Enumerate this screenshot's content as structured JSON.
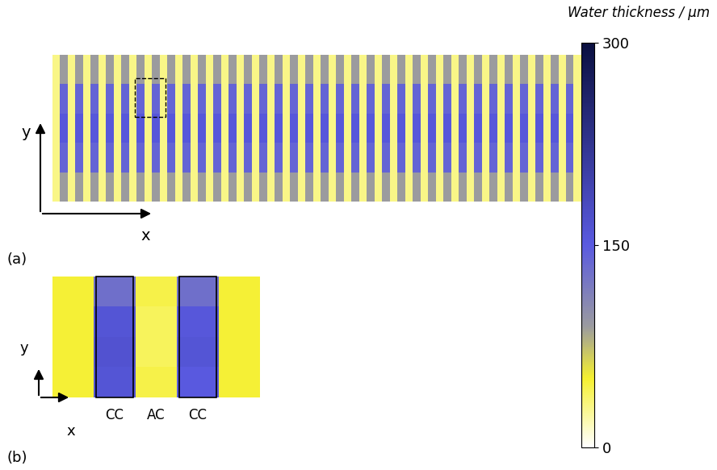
{
  "chart_data": [
    {
      "type": "heatmap",
      "title": "(a)",
      "x_label": "x",
      "y_label": "y",
      "tick_labels": false,
      "cells": [
        [
          30,
          90,
          30,
          90,
          30,
          90,
          30,
          90,
          30,
          90,
          30,
          90,
          30,
          90,
          30,
          90,
          30,
          90,
          30,
          90,
          30,
          90,
          30,
          90,
          30,
          90,
          30,
          90,
          30,
          90,
          30,
          90,
          30,
          90,
          30,
          90,
          30,
          90,
          30,
          90,
          30,
          90,
          30,
          90,
          30,
          90,
          30,
          90,
          30,
          90,
          30,
          90,
          30,
          90,
          30,
          90,
          30,
          90,
          30,
          90,
          30,
          90,
          30,
          90,
          30,
          90,
          30,
          90,
          30
        ],
        [
          30,
          140,
          30,
          140,
          30,
          140,
          30,
          140,
          30,
          140,
          30,
          140,
          30,
          140,
          30,
          140,
          30,
          140,
          30,
          140,
          30,
          140,
          30,
          140,
          30,
          140,
          30,
          140,
          30,
          140,
          30,
          140,
          30,
          140,
          30,
          140,
          30,
          140,
          30,
          140,
          30,
          140,
          30,
          140,
          30,
          140,
          30,
          140,
          30,
          140,
          30,
          140,
          30,
          140,
          30,
          140,
          30,
          140,
          30,
          140,
          30,
          140,
          30,
          140,
          30,
          140,
          30,
          140,
          30
        ],
        [
          30,
          155,
          30,
          155,
          30,
          155,
          30,
          155,
          30,
          155,
          30,
          155,
          30,
          155,
          30,
          155,
          30,
          155,
          30,
          155,
          30,
          155,
          30,
          155,
          30,
          155,
          30,
          155,
          30,
          155,
          30,
          155,
          30,
          155,
          30,
          155,
          30,
          155,
          30,
          155,
          30,
          155,
          30,
          155,
          30,
          155,
          30,
          155,
          30,
          155,
          30,
          155,
          30,
          155,
          30,
          155,
          30,
          155,
          30,
          155,
          30,
          155,
          30,
          155,
          30,
          155,
          30,
          155,
          30
        ],
        [
          30,
          140,
          30,
          140,
          30,
          140,
          30,
          140,
          30,
          140,
          30,
          140,
          30,
          140,
          30,
          140,
          30,
          140,
          30,
          140,
          30,
          140,
          30,
          140,
          30,
          140,
          30,
          140,
          30,
          140,
          30,
          140,
          30,
          140,
          30,
          140,
          30,
          140,
          30,
          140,
          30,
          140,
          30,
          140,
          30,
          140,
          30,
          140,
          30,
          140,
          30,
          140,
          30,
          140,
          30,
          140,
          30,
          140,
          30,
          140,
          30,
          140,
          30,
          140,
          30,
          140,
          30,
          140,
          30
        ],
        [
          30,
          90,
          30,
          90,
          30,
          90,
          30,
          90,
          30,
          90,
          30,
          90,
          30,
          90,
          30,
          90,
          30,
          90,
          30,
          90,
          30,
          90,
          30,
          90,
          30,
          90,
          30,
          90,
          30,
          90,
          30,
          90,
          30,
          90,
          30,
          90,
          30,
          90,
          30,
          90,
          30,
          90,
          30,
          90,
          30,
          90,
          30,
          90,
          30,
          90,
          30,
          90,
          30,
          90,
          30,
          90,
          30,
          90,
          30,
          90,
          30,
          90,
          30,
          90,
          30,
          90,
          30,
          90,
          30
        ]
      ],
      "colorbar": {
        "label": "Water thickness / μm",
        "range": [
          0,
          300
        ],
        "ticks": [
          0,
          150,
          300
        ]
      }
    },
    {
      "type": "heatmap",
      "title": "(b)",
      "x_label": "x",
      "y_label": "y",
      "categories": [
        null,
        "CC",
        "AC",
        "CC",
        null
      ],
      "cells": [
        [
          50,
          130,
          45,
          130,
          50
        ],
        [
          50,
          160,
          40,
          155,
          50
        ],
        [
          50,
          165,
          40,
          160,
          50
        ],
        [
          50,
          160,
          45,
          150,
          50
        ]
      ]
    }
  ]
}
